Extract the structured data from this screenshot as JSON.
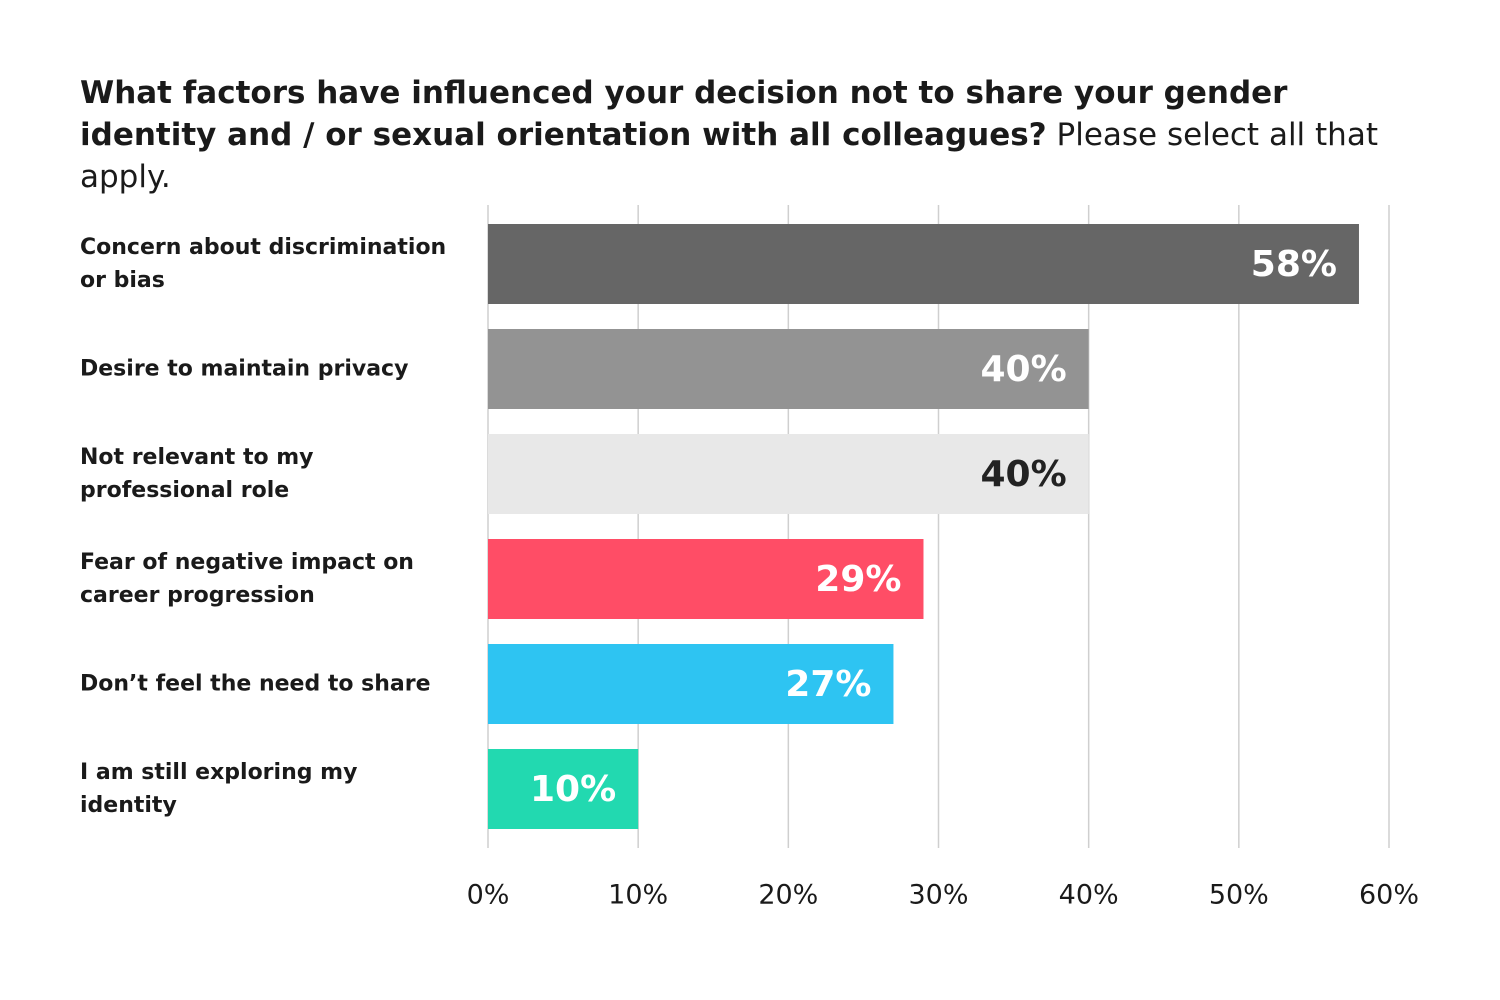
{
  "chart_data": {
    "type": "hbar",
    "title": "What factors have influenced your decision not to share your gender identity and / or sexual orientation with all colleagues?",
    "subtitle": "Please select all that apply.",
    "categories": [
      "Concern about discrimination or bias",
      "Desire to maintain privacy",
      "Not relevant to my professional role",
      "Fear of negative impact on career progression",
      "Don’t feel the need to share",
      "I am still exploring my identity"
    ],
    "values": [
      58,
      40,
      40,
      29,
      27,
      10
    ],
    "value_labels": [
      "58%",
      "40%",
      "40%",
      "29%",
      "27%",
      "10%"
    ],
    "colors": [
      "#666666",
      "#939393",
      "#e8e8e8",
      "#ff4d66",
      "#2ec4f2",
      "#22d9b0"
    ],
    "label_colors": [
      "#ffffff",
      "#ffffff",
      "#222222",
      "#ffffff",
      "#ffffff",
      "#ffffff"
    ],
    "xlim": [
      0,
      60
    ],
    "xticks": [
      {
        "value": 0,
        "label": "0%"
      },
      {
        "value": 10,
        "label": "10%"
      },
      {
        "value": 20,
        "label": "20%"
      },
      {
        "value": 30,
        "label": "30%"
      },
      {
        "value": 40,
        "label": "40%"
      },
      {
        "value": 50,
        "label": "50%"
      },
      {
        "value": 60,
        "label": "60%"
      }
    ],
    "grid": true
  }
}
